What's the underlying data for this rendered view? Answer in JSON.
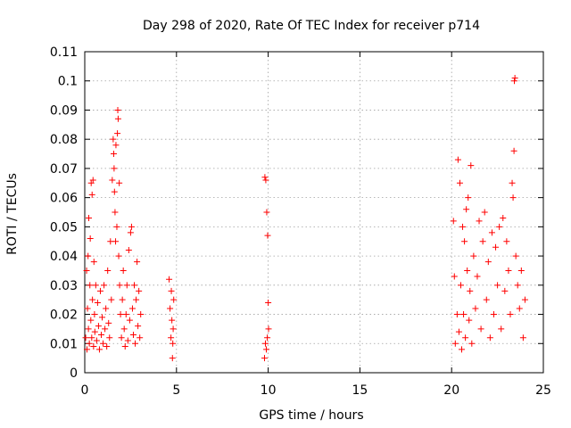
{
  "chart_data": {
    "type": "scatter",
    "title": "Day 298 of 2020, Rate Of TEC Index for receiver p714",
    "xlabel": "GPS time / hours",
    "ylabel": "ROTI / TECUs",
    "xlim": [
      0,
      25
    ],
    "ylim": [
      0,
      0.11
    ],
    "x_ticks": [
      0,
      5,
      10,
      15,
      20,
      25
    ],
    "x_tick_labels": [
      "0",
      "5",
      "10",
      "15",
      "20",
      "25"
    ],
    "y_ticks": [
      0,
      0.01,
      0.02,
      0.03,
      0.04,
      0.05,
      0.06,
      0.07,
      0.08,
      0.09,
      0.1,
      0.11
    ],
    "y_tick_labels": [
      "0",
      "0.01",
      "0.02",
      "0.03",
      "0.04",
      "0.05",
      "0.06",
      "0.07",
      "0.08",
      "0.09",
      "0.1",
      "0.11"
    ],
    "grid": true,
    "legend": "none",
    "marker": "plus",
    "color": "#ff0000",
    "series": [
      {
        "points": [
          [
            0.05,
            0.012
          ],
          [
            0.1,
            0.035
          ],
          [
            0.12,
            0.008
          ],
          [
            0.15,
            0.022
          ],
          [
            0.18,
            0.04
          ],
          [
            0.2,
            0.015
          ],
          [
            0.22,
            0.053
          ],
          [
            0.25,
            0.01
          ],
          [
            0.28,
            0.03
          ],
          [
            0.3,
            0.046
          ],
          [
            0.33,
            0.018
          ],
          [
            0.35,
            0.065
          ],
          [
            0.38,
            0.012
          ],
          [
            0.4,
            0.061
          ],
          [
            0.42,
            0.025
          ],
          [
            0.45,
            0.066
          ],
          [
            0.48,
            0.009
          ],
          [
            0.5,
            0.038
          ],
          [
            0.53,
            0.02
          ],
          [
            0.55,
            0.014
          ],
          [
            0.6,
            0.03
          ],
          [
            0.65,
            0.011
          ],
          [
            0.7,
            0.024
          ],
          [
            0.75,
            0.016
          ],
          [
            0.8,
            0.008
          ],
          [
            0.85,
            0.028
          ],
          [
            0.9,
            0.013
          ],
          [
            0.95,
            0.019
          ],
          [
            1.0,
            0.01
          ],
          [
            1.05,
            0.03
          ],
          [
            1.1,
            0.015
          ],
          [
            1.15,
            0.022
          ],
          [
            1.2,
            0.009
          ],
          [
            1.25,
            0.035
          ],
          [
            1.3,
            0.017
          ],
          [
            1.35,
            0.012
          ],
          [
            1.4,
            0.045
          ],
          [
            1.45,
            0.025
          ],
          [
            1.5,
            0.066
          ],
          [
            1.55,
            0.08
          ],
          [
            1.58,
            0.075
          ],
          [
            1.6,
            0.07
          ],
          [
            1.62,
            0.062
          ],
          [
            1.65,
            0.055
          ],
          [
            1.68,
            0.045
          ],
          [
            1.7,
            0.078
          ],
          [
            1.75,
            0.05
          ],
          [
            1.78,
            0.082
          ],
          [
            1.8,
            0.09
          ],
          [
            1.82,
            0.087
          ],
          [
            1.85,
            0.04
          ],
          [
            1.88,
            0.065
          ],
          [
            1.9,
            0.03
          ],
          [
            1.95,
            0.02
          ],
          [
            2.0,
            0.012
          ],
          [
            2.05,
            0.025
          ],
          [
            2.1,
            0.035
          ],
          [
            2.15,
            0.015
          ],
          [
            2.2,
            0.009
          ],
          [
            2.25,
            0.02
          ],
          [
            2.3,
            0.03
          ],
          [
            2.35,
            0.011
          ],
          [
            2.4,
            0.042
          ],
          [
            2.45,
            0.018
          ],
          [
            2.5,
            0.048
          ],
          [
            2.55,
            0.05
          ],
          [
            2.6,
            0.022
          ],
          [
            2.65,
            0.013
          ],
          [
            2.7,
            0.03
          ],
          [
            2.75,
            0.01
          ],
          [
            2.8,
            0.025
          ],
          [
            2.85,
            0.038
          ],
          [
            2.9,
            0.016
          ],
          [
            2.95,
            0.028
          ],
          [
            3.0,
            0.012
          ],
          [
            3.05,
            0.02
          ],
          [
            4.6,
            0.032
          ],
          [
            4.65,
            0.022
          ],
          [
            4.7,
            0.012
          ],
          [
            4.72,
            0.028
          ],
          [
            4.75,
            0.018
          ],
          [
            4.78,
            0.005
          ],
          [
            4.8,
            0.01
          ],
          [
            4.82,
            0.015
          ],
          [
            4.85,
            0.025
          ],
          [
            9.8,
            0.005
          ],
          [
            9.82,
            0.067
          ],
          [
            9.85,
            0.01
          ],
          [
            9.87,
            0.066
          ],
          [
            9.9,
            0.008
          ],
          [
            9.92,
            0.055
          ],
          [
            9.95,
            0.012
          ],
          [
            9.97,
            0.047
          ],
          [
            10.0,
            0.024
          ],
          [
            10.02,
            0.015
          ],
          [
            20.1,
            0.052
          ],
          [
            20.15,
            0.033
          ],
          [
            20.2,
            0.01
          ],
          [
            20.3,
            0.02
          ],
          [
            20.35,
            0.073
          ],
          [
            20.4,
            0.014
          ],
          [
            20.45,
            0.065
          ],
          [
            20.5,
            0.03
          ],
          [
            20.55,
            0.008
          ],
          [
            20.6,
            0.05
          ],
          [
            20.65,
            0.02
          ],
          [
            20.7,
            0.045
          ],
          [
            20.75,
            0.012
          ],
          [
            20.8,
            0.056
          ],
          [
            20.85,
            0.035
          ],
          [
            20.9,
            0.06
          ],
          [
            20.95,
            0.018
          ],
          [
            21.0,
            0.028
          ],
          [
            21.05,
            0.071
          ],
          [
            21.1,
            0.01
          ],
          [
            21.2,
            0.04
          ],
          [
            21.3,
            0.022
          ],
          [
            21.4,
            0.033
          ],
          [
            21.5,
            0.052
          ],
          [
            21.6,
            0.015
          ],
          [
            21.7,
            0.045
          ],
          [
            21.8,
            0.055
          ],
          [
            21.9,
            0.025
          ],
          [
            22.0,
            0.038
          ],
          [
            22.1,
            0.012
          ],
          [
            22.2,
            0.048
          ],
          [
            22.3,
            0.02
          ],
          [
            22.4,
            0.043
          ],
          [
            22.5,
            0.03
          ],
          [
            22.6,
            0.05
          ],
          [
            22.7,
            0.015
          ],
          [
            22.8,
            0.053
          ],
          [
            22.9,
            0.028
          ],
          [
            23.0,
            0.045
          ],
          [
            23.1,
            0.035
          ],
          [
            23.2,
            0.02
          ],
          [
            23.3,
            0.065
          ],
          [
            23.35,
            0.06
          ],
          [
            23.4,
            0.076
          ],
          [
            23.42,
            0.1
          ],
          [
            23.45,
            0.101
          ],
          [
            23.5,
            0.04
          ],
          [
            23.6,
            0.03
          ],
          [
            23.7,
            0.022
          ],
          [
            23.8,
            0.035
          ],
          [
            23.9,
            0.012
          ],
          [
            24.0,
            0.025
          ]
        ]
      }
    ]
  }
}
